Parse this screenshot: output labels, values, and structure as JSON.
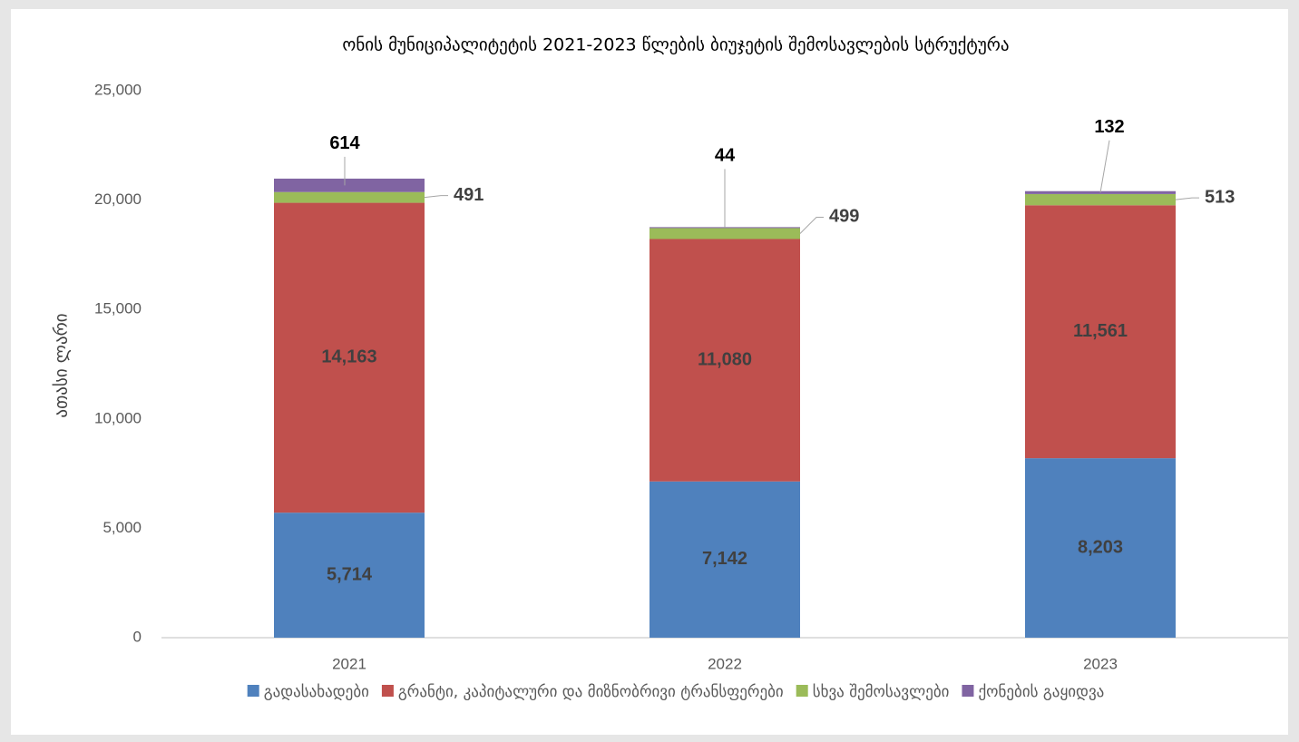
{
  "chart_data": {
    "type": "stacked_bar",
    "title": "ონის მუნიციპალიტეტის 2021-2023 წლების ბიუჯეტის შემოსავლების სტრუქტურა",
    "y_label": "ათასი ლარი",
    "categories": [
      "2021",
      "2022",
      "2023"
    ],
    "series": [
      {
        "name": "გადასახადები",
        "color": "#4f81bd",
        "values": [
          5714,
          7142,
          8203
        ],
        "value_labels": [
          "5,714",
          "7,142",
          "8,203"
        ]
      },
      {
        "name": "გრანტი, კაპიტალური და მიზნობრივი ტრანსფერები",
        "color": "#c0504d",
        "values": [
          14163,
          11080,
          11561
        ],
        "value_labels": [
          "14,163",
          "11,080",
          "11,561"
        ]
      },
      {
        "name": "სხვა შემოსავლები",
        "color": "#9bbb59",
        "values": [
          491,
          499,
          513
        ],
        "value_labels": [
          "491",
          "499",
          "513"
        ]
      },
      {
        "name": "ქონების გაყიდვა",
        "color": "#8064a2",
        "values": [
          614,
          44,
          132
        ],
        "value_labels": [
          "614",
          "44",
          "132"
        ]
      }
    ],
    "ylim": [
      0,
      25000
    ],
    "yticks": [
      0,
      {
        "value": 5000,
        "label": "5,000"
      },
      {
        "value": 10000,
        "label": "10,000"
      },
      {
        "value": 15000,
        "label": "15,000"
      },
      {
        "value": 20000,
        "label": "20,000"
      },
      {
        "value": 25000,
        "label": "25,000"
      }
    ],
    "legend": "bottom"
  }
}
